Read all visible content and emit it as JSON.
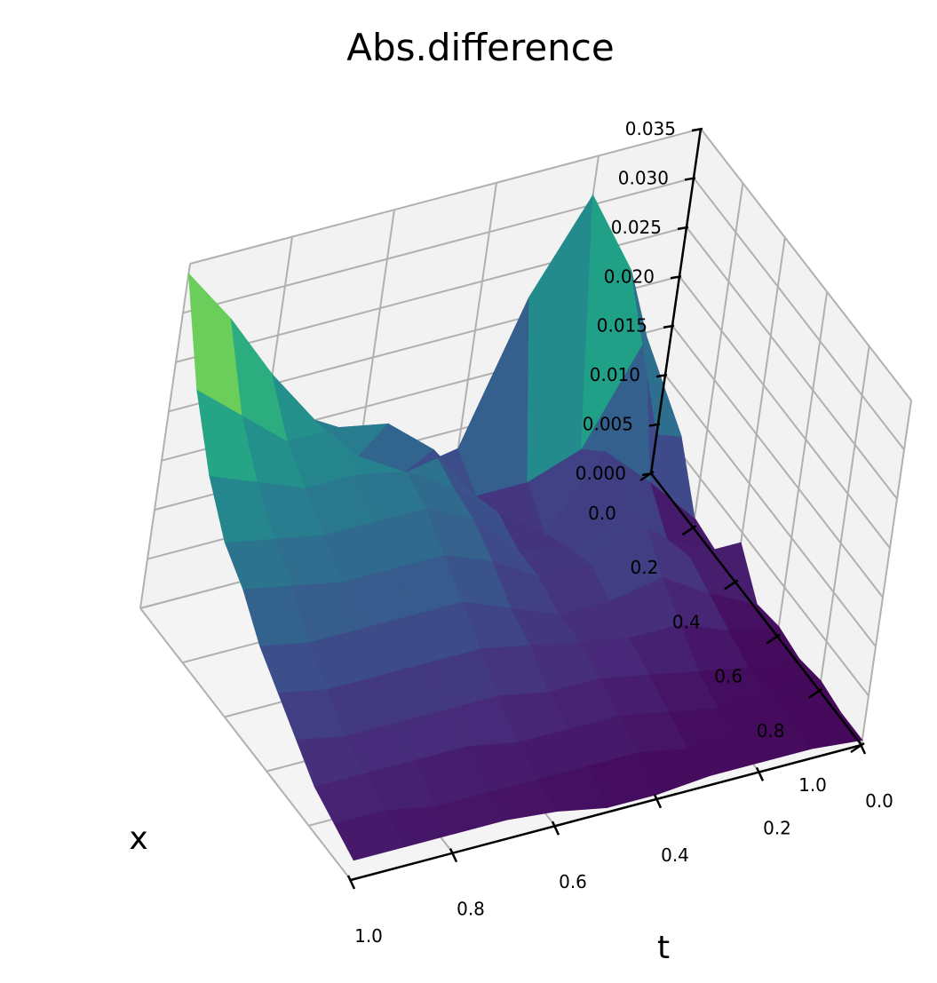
{
  "chart_data": {
    "type": "surface",
    "title": "Abs.difference",
    "xlabel": "t",
    "ylabel": "x",
    "zlabel": "",
    "colormap": "viridis",
    "grid": true,
    "t_ticks": [
      "0.0",
      "0.2",
      "0.4",
      "0.6",
      "0.8",
      "1.0"
    ],
    "x_ticks": [
      "0.0",
      "0.2",
      "0.4",
      "0.6",
      "0.8",
      "1.0"
    ],
    "z_ticks": [
      "0.000",
      "0.005",
      "0.010",
      "0.015",
      "0.020",
      "0.025",
      "0.030",
      "0.035"
    ],
    "t_range": [
      0,
      1
    ],
    "x_range": [
      0,
      1
    ],
    "z_range": [
      0,
      0.035
    ],
    "t": [
      0,
      0.1,
      0.2,
      0.3,
      0.4,
      0.5,
      0.6,
      0.7,
      0.8,
      0.9,
      1.0
    ],
    "x": [
      0,
      0.1,
      0.2,
      0.3,
      0.4,
      0.5,
      0.6,
      0.7,
      0.8,
      0.9,
      1.0
    ],
    "z": [
      [
        0.004,
        0.022,
        0.031,
        0.022,
        0.008,
        0.007,
        0.01,
        0.015,
        0.021,
        0.028,
        0.034
      ],
      [
        0.0065,
        0.018,
        0.008,
        0.006,
        0.006,
        0.012,
        0.016,
        0.017,
        0.017,
        0.021,
        0.025
      ],
      [
        0.001,
        0.006,
        0.0105,
        0.0035,
        0.007,
        0.011,
        0.014,
        0.015,
        0.015,
        0.017,
        0.019
      ],
      [
        0.0005,
        0.003,
        0.007,
        0.005,
        0.006,
        0.0105,
        0.013,
        0.013,
        0.013,
        0.014,
        0.015
      ],
      [
        0.004,
        0.004,
        0.009,
        0.006,
        0.006,
        0.009,
        0.011,
        0.011,
        0.011,
        0.012,
        0.013
      ],
      [
        0.0005,
        0.003,
        0.006,
        0.005,
        0.005,
        0.007,
        0.009,
        0.009,
        0.009,
        0.009,
        0.01
      ],
      [
        0.001,
        0.002,
        0.004,
        0.004,
        0.005,
        0.006,
        0.007,
        0.007,
        0.007,
        0.007,
        0.008
      ],
      [
        0.0005,
        0.001,
        0.002,
        0.003,
        0.004,
        0.004,
        0.005,
        0.005,
        0.005,
        0.005,
        0.006
      ],
      [
        0.001,
        0.001,
        0.001,
        0.002,
        0.003,
        0.003,
        0.003,
        0.004,
        0.004,
        0.004,
        0.004
      ],
      [
        0.0005,
        0.001,
        0.001,
        0.001,
        0.002,
        0.002,
        0.002,
        0.002,
        0.002,
        0.003,
        0.003
      ],
      [
        0.0005,
        0.001,
        0.001,
        0.001,
        0.0005,
        0.0005,
        0.0015,
        0.002,
        0.002,
        0.002,
        0.002
      ]
    ]
  }
}
